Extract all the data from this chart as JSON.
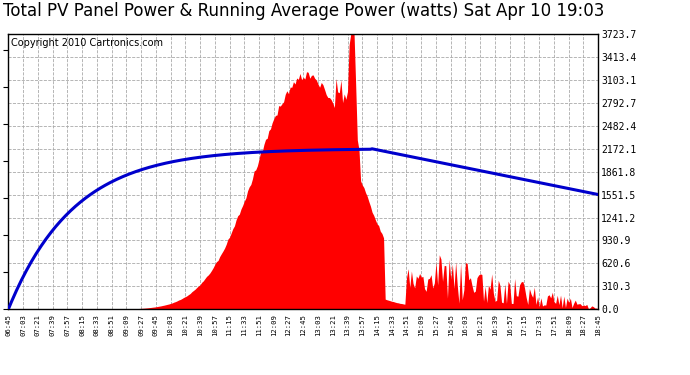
{
  "title": "Total PV Panel Power & Running Average Power (watts) Sat Apr 10 19:03",
  "copyright": "Copyright 2010 Cartronics.com",
  "yticks": [
    0.0,
    310.3,
    620.6,
    930.9,
    1241.2,
    1551.5,
    1861.8,
    2172.1,
    2482.4,
    2792.7,
    3103.1,
    3413.4,
    3723.7
  ],
  "ymax": 3723.7,
  "ymin": 0.0,
  "background_color": "#ffffff",
  "plot_bg_color": "#ffffff",
  "grid_color": "#aaaaaa",
  "fill_color": "#ff0000",
  "avg_line_color": "#0000cc",
  "title_fontsize": 12,
  "copyright_fontsize": 7,
  "xtick_labels": [
    "06:45",
    "07:03",
    "07:21",
    "07:39",
    "07:57",
    "08:15",
    "08:33",
    "08:51",
    "09:09",
    "09:27",
    "09:45",
    "10:03",
    "10:21",
    "10:39",
    "10:57",
    "11:15",
    "11:33",
    "11:51",
    "12:09",
    "12:27",
    "12:45",
    "13:03",
    "13:21",
    "13:39",
    "13:57",
    "14:15",
    "14:33",
    "14:51",
    "15:09",
    "15:27",
    "15:45",
    "16:03",
    "16:21",
    "16:39",
    "16:57",
    "17:15",
    "17:33",
    "17:51",
    "18:09",
    "18:27",
    "18:45"
  ]
}
